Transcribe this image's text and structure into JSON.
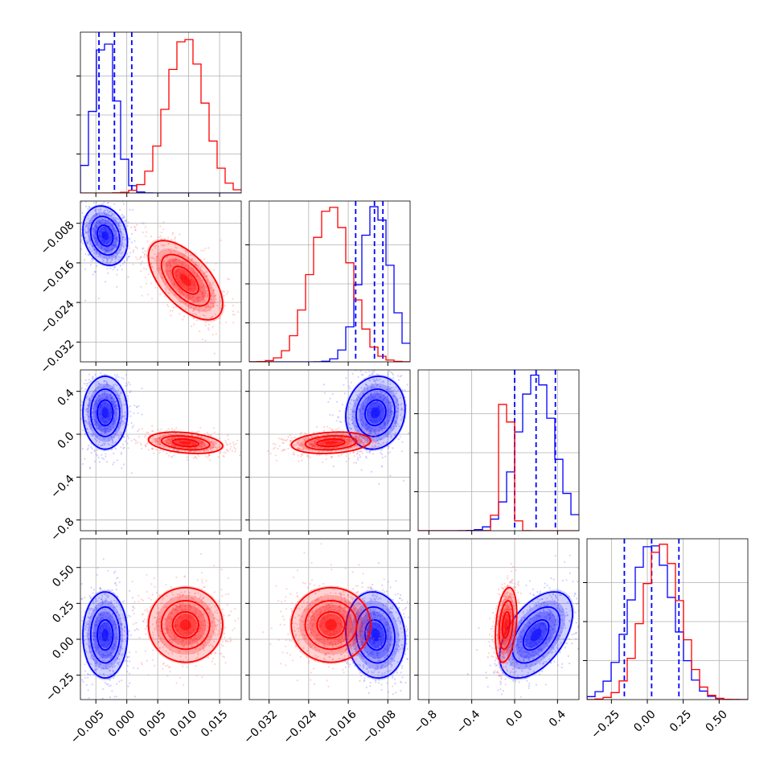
{
  "chart_data": {
    "type": "corner",
    "title": "",
    "colors": {
      "series_a": "#0000ff",
      "series_b": "#ff0000"
    },
    "series": [
      {
        "name": "blue",
        "color": "#0000ff",
        "means": [
          -0.0035,
          -0.0105,
          0.2,
          0.03
        ],
        "stds": [
          0.0018,
          0.003,
          0.17,
          0.15
        ],
        "quantiles": [
          [
            -0.0045,
            -0.002,
            0.0008
          ],
          [
            -0.0145,
            -0.0107,
            -0.009
          ],
          [
            0.0,
            0.2,
            0.38
          ],
          [
            -0.16,
            0.03,
            0.22
          ]
        ],
        "corr": {
          "1_0": -0.2,
          "2_0": 0.0,
          "2_1": 0.1,
          "3_0": 0.0,
          "3_1": -0.1,
          "3_2": 0.5
        }
      },
      {
        "name": "red",
        "color": "#ff0000",
        "means": [
          0.0095,
          -0.0195,
          -0.08,
          0.1
        ],
        "stds": [
          0.003,
          0.004,
          0.05,
          0.13
        ],
        "corr": {
          "1_0": -0.6,
          "2_0": -0.3,
          "2_1": 0.2,
          "3_0": 0.0,
          "3_1": 0.0,
          "3_2": 0.3
        }
      }
    ],
    "params": [
      {
        "range": [
          -0.0075,
          0.0185
        ],
        "ticks": [
          -0.005,
          0.0,
          0.005,
          0.01,
          0.015
        ],
        "tick_labels": [
          "−0.005",
          "0.000",
          "0.005",
          "0.010",
          "0.015"
        ]
      },
      {
        "range": [
          -0.036,
          -0.0035
        ],
        "ticks": [
          -0.032,
          -0.024,
          -0.016,
          -0.008
        ],
        "tick_labels": [
          "−0.032",
          "−0.024",
          "−0.016",
          "−0.008"
        ]
      },
      {
        "range": [
          -0.9,
          0.6
        ],
        "ticks": [
          -0.8,
          -0.4,
          0.0,
          0.4
        ],
        "tick_labels": [
          "−0.8",
          "−0.4",
          "0.0",
          "0.4"
        ]
      },
      {
        "range": [
          -0.42,
          0.7
        ],
        "ticks": [
          -0.25,
          0.0,
          0.25,
          0.5
        ],
        "tick_labels": [
          "−0.25",
          "0.00",
          "0.25",
          "0.50"
        ]
      }
    ]
  }
}
